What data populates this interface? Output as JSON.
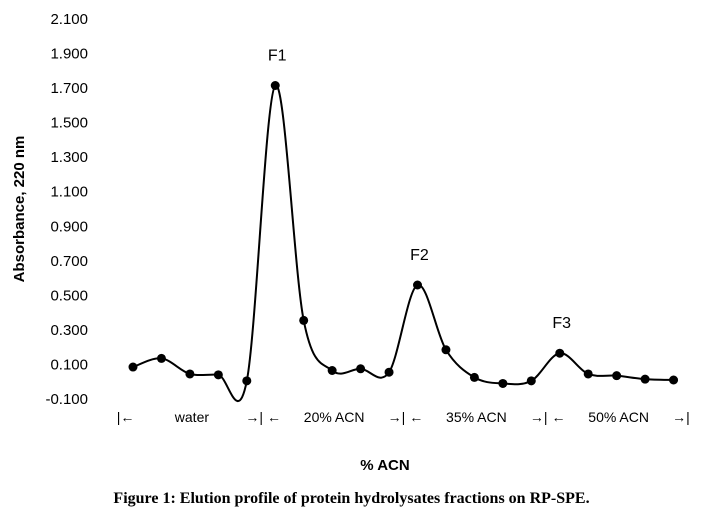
{
  "chart_data": {
    "type": "line",
    "title": "",
    "xlabel": "% ACN",
    "ylabel": "Absorbance, 220 nm",
    "ylim": [
      -0.1,
      2.1
    ],
    "yticks": [
      "-0.100",
      "0.100",
      "0.300",
      "0.500",
      "0.700",
      "0.900",
      "1.100",
      "1.300",
      "1.500",
      "1.700",
      "1.900",
      "2.100"
    ],
    "grid": false,
    "legend": "none",
    "x": [
      1,
      2,
      3,
      4,
      5,
      6,
      7,
      8,
      9,
      10,
      11,
      12,
      13,
      14,
      15,
      16,
      17,
      18,
      19,
      20
    ],
    "series": [
      {
        "values": [
          0.085,
          0.135,
          0.045,
          0.04,
          0.005,
          1.715,
          0.355,
          0.065,
          0.075,
          0.055,
          0.56,
          0.185,
          0.025,
          -0.01,
          0.005,
          0.165,
          0.045,
          0.035,
          0.015,
          0.01
        ]
      }
    ],
    "color": "#000000",
    "annotations": [
      {
        "label": "F1",
        "x": 6
      },
      {
        "label": "F2",
        "x": 11
      },
      {
        "label": "F3",
        "x": 16
      }
    ],
    "phases": [
      {
        "arrow_left": "|←",
        "name": "water",
        "arrow_right": "→|"
      },
      {
        "arrow_left": "←",
        "name": "20% ACN",
        "arrow_right": "→|"
      },
      {
        "arrow_left": "←",
        "name": "35% ACN",
        "arrow_right": "→|"
      },
      {
        "arrow_left": "←",
        "name": "50% ACN",
        "arrow_right": "→|"
      }
    ]
  },
  "caption": "Figure 1: Elution profile of protein hydrolysates fractions on RP-SPE."
}
